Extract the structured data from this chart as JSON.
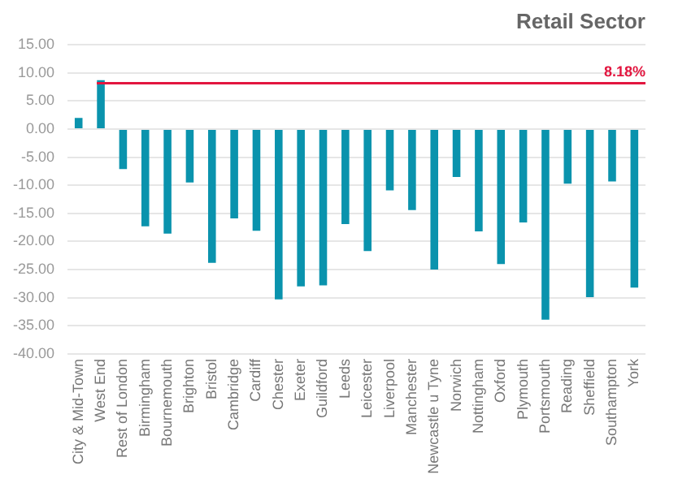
{
  "chart_data": {
    "type": "bar",
    "title": "Retail Sector",
    "categories": [
      "City & Mid-Town",
      "West End",
      "Rest of London",
      "Birmingham",
      "Bournemouth",
      "Brighton",
      "Bristol",
      "Cambridge",
      "Cardiff",
      "Chester",
      "Exeter",
      "Guildford",
      "Leeds",
      "Leicester",
      "Liverpool",
      "Manchester",
      "Newcastle u Tyne",
      "Norwich",
      "Nottingham",
      "Oxford",
      "Plymouth",
      "Portsmouth",
      "Reading",
      "Sheffield",
      "Southampton",
      "York"
    ],
    "values": [
      2.0,
      8.7,
      -7.1,
      -17.3,
      -18.6,
      -9.5,
      -23.8,
      -15.9,
      -18.1,
      -30.3,
      -28.0,
      -27.8,
      -16.9,
      -21.7,
      -10.9,
      -14.4,
      -25.0,
      -8.5,
      -18.2,
      -24.0,
      -16.6,
      -33.9,
      -9.7,
      -29.9,
      -9.3,
      -28.2
    ],
    "color": "#0a93ad",
    "ylim": [
      -40,
      15
    ],
    "yticks": [
      {
        "value": -40,
        "label": "-40.00"
      },
      {
        "value": -35,
        "label": "-35.00"
      },
      {
        "value": -30,
        "label": "-30.00"
      },
      {
        "value": -25,
        "label": "-25.00"
      },
      {
        "value": -20,
        "label": "-20.00"
      },
      {
        "value": -15,
        "label": "-15.00"
      },
      {
        "value": -10,
        "label": "-10.00"
      },
      {
        "value": -5,
        "label": "-5.00"
      },
      {
        "value": 0,
        "label": "0.00"
      },
      {
        "value": 5,
        "label": "5.00"
      },
      {
        "value": 10,
        "label": "10.00"
      },
      {
        "value": 15,
        "label": "15.00"
      }
    ],
    "grid": "y",
    "ref_lines": [
      {
        "axis": "y",
        "value": 8.18,
        "label": "8.18%",
        "color": "#e2163f"
      }
    ]
  }
}
